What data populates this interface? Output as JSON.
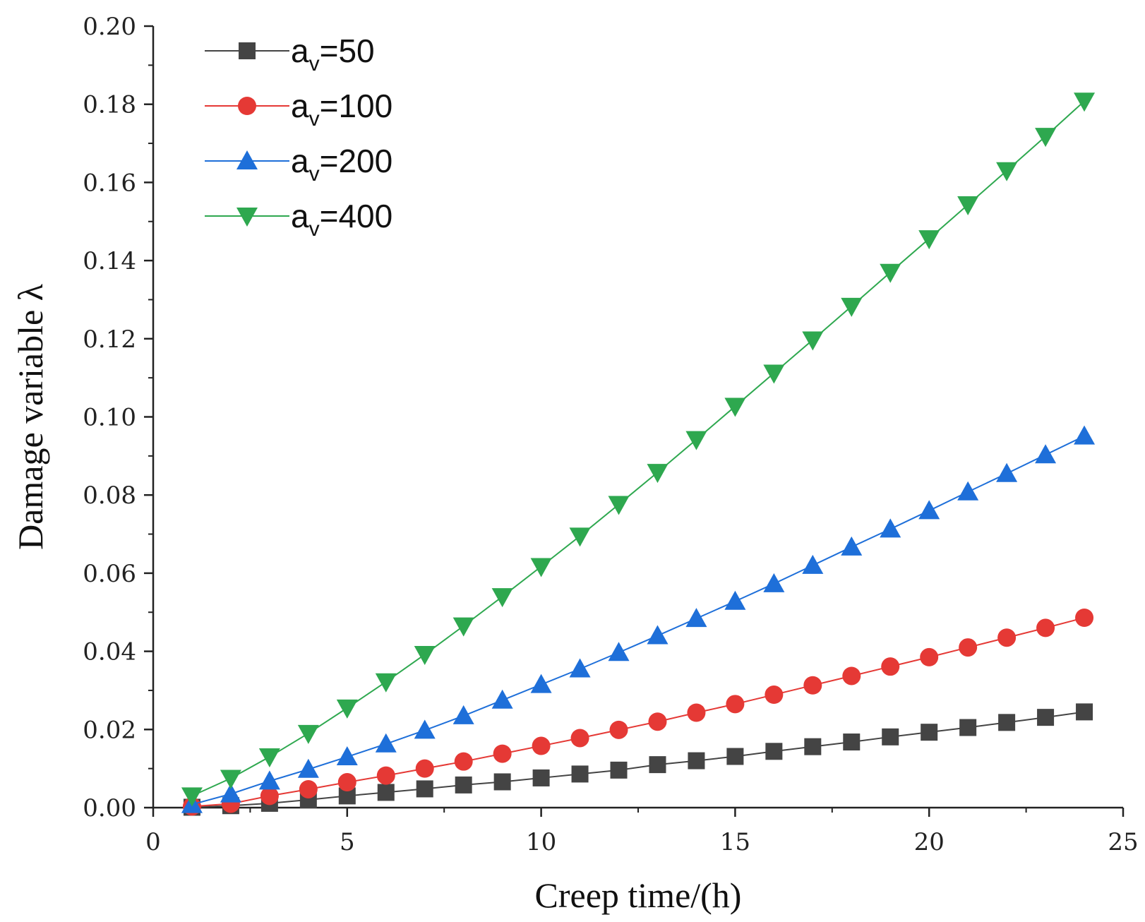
{
  "chart_data": {
    "type": "line",
    "title": "",
    "xlabel": "Creep time/(h)",
    "ylabel": "Damage variable λ",
    "xlim": [
      0,
      25
    ],
    "ylim": [
      0,
      0.2
    ],
    "x_ticks": [
      0,
      5,
      10,
      15,
      20,
      25
    ],
    "x_tick_labels": [
      "0",
      "5",
      "10",
      "15",
      "20",
      "25"
    ],
    "y_ticks": [
      0,
      0.02,
      0.04,
      0.06,
      0.08,
      0.1,
      0.12,
      0.14,
      0.16,
      0.18,
      0.2
    ],
    "y_tick_labels": [
      "0.00",
      "0.02",
      "0.04",
      "0.06",
      "0.08",
      "0.10",
      "0.12",
      "0.14",
      "0.16",
      "0.18",
      "0.20"
    ],
    "grid": false,
    "legend_position": "top-left",
    "x": [
      1,
      2,
      3,
      4,
      5,
      6,
      7,
      8,
      9,
      10,
      11,
      12,
      13,
      14,
      15,
      16,
      17,
      18,
      19,
      20,
      21,
      22,
      23,
      24
    ],
    "series": [
      {
        "name": "a_v=50",
        "label_main": "a",
        "label_sub": "v",
        "label_rest": "=50",
        "marker": "square",
        "color": "#444444",
        "values": [
          0.0001,
          0.0005,
          0.0011,
          0.002,
          0.003,
          0.0039,
          0.0048,
          0.0058,
          0.0066,
          0.0076,
          0.0086,
          0.0096,
          0.011,
          0.012,
          0.0131,
          0.0144,
          0.0156,
          0.0168,
          0.0181,
          0.0193,
          0.0205,
          0.0218,
          0.0231,
          0.0245
        ]
      },
      {
        "name": "a_v=100",
        "label_main": "a",
        "label_sub": "v",
        "label_rest": "=100",
        "marker": "circle",
        "color": "#e53935",
        "values": [
          0.0003,
          0.001,
          0.003,
          0.0047,
          0.0065,
          0.0082,
          0.01,
          0.0118,
          0.0138,
          0.0158,
          0.0178,
          0.0199,
          0.022,
          0.0243,
          0.0265,
          0.0289,
          0.0313,
          0.0337,
          0.0361,
          0.0385,
          0.041,
          0.0435,
          0.046,
          0.0486
        ]
      },
      {
        "name": "a_v=200",
        "label_main": "a",
        "label_sub": "v",
        "label_rest": "=200",
        "marker": "triangle-up",
        "color": "#1e6fd9",
        "values": [
          0.0008,
          0.0035,
          0.0068,
          0.0098,
          0.013,
          0.0163,
          0.0198,
          0.0235,
          0.0275,
          0.0315,
          0.0355,
          0.0397,
          0.044,
          0.0484,
          0.0528,
          0.0573,
          0.062,
          0.0667,
          0.0713,
          0.076,
          0.0808,
          0.0855,
          0.0903,
          0.0951
        ]
      },
      {
        "name": "a_v=400",
        "label_main": "a",
        "label_sub": "v",
        "label_rest": "=400",
        "marker": "triangle-down",
        "color": "#2ea84f",
        "values": [
          0.003,
          0.0075,
          0.013,
          0.019,
          0.0255,
          0.0322,
          0.0392,
          0.0465,
          0.054,
          0.0617,
          0.0695,
          0.0776,
          0.0858,
          0.0942,
          0.1027,
          0.1112,
          0.1197,
          0.1283,
          0.137,
          0.1456,
          0.1543,
          0.163,
          0.1718,
          0.1808
        ]
      }
    ]
  }
}
